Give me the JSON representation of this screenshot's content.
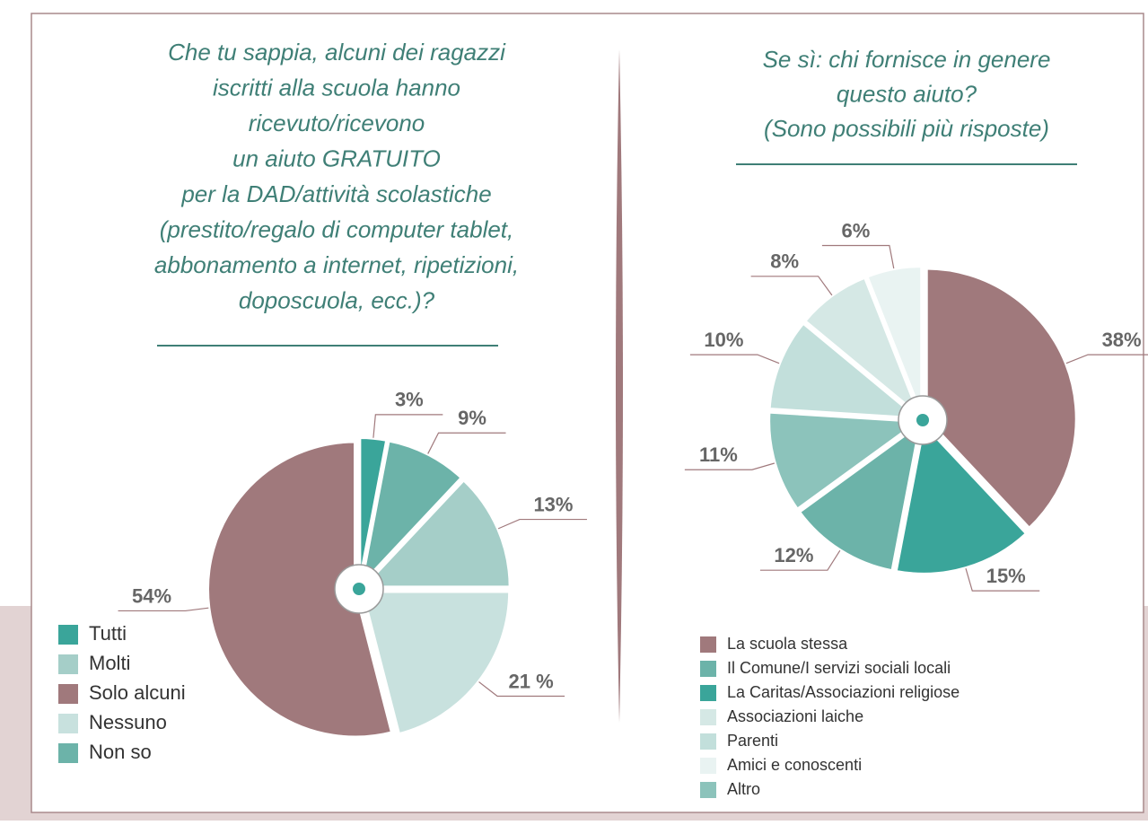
{
  "chart_data": [
    {
      "type": "pie",
      "title": [
        "Che tu sappia, alcuni dei ragazzi",
        "iscritti alla scuola hanno",
        "ricevuto/ricevono",
        "un aiuto GRATUITO",
        "per la DAD/attività scolastiche",
        "(prestito/regalo di computer tablet,",
        "abbonamento a internet, ripetizioni,",
        "doposcuola, ecc.)?"
      ],
      "categories": [
        "Tutti",
        "Molti",
        "Solo alcuni",
        "Nessuno",
        "Non so"
      ],
      "values": [
        3,
        13,
        54,
        21,
        9
      ],
      "value_labels": [
        "3%",
        "13%",
        "54%",
        "21 %",
        "9%"
      ],
      "colors": [
        "#3aa59a",
        "#a5cec8",
        "#a0797c",
        "#c8e1de",
        "#6cb3a9"
      ]
    },
    {
      "type": "pie",
      "title": [
        "Se sì: chi fornisce in genere",
        "questo aiuto?",
        "(Sono possibili più risposte)"
      ],
      "categories": [
        "La scuola stessa",
        "Il Comune/I servizi sociali locali",
        "La Caritas/Associazioni religiose",
        "Associazioni laiche",
        "Parenti",
        "Amici e conoscenti",
        "Altro"
      ],
      "values": [
        38,
        12,
        15,
        8,
        10,
        6,
        11
      ],
      "value_labels": [
        "38%",
        "12%",
        "15%",
        "8%",
        "10%",
        "6%",
        "11%"
      ],
      "colors": [
        "#a0797c",
        "#6cb3a9",
        "#3aa59a",
        "#d5e8e5",
        "#c2dfdb",
        "#e9f3f2",
        "#8cc3bb"
      ]
    }
  ]
}
